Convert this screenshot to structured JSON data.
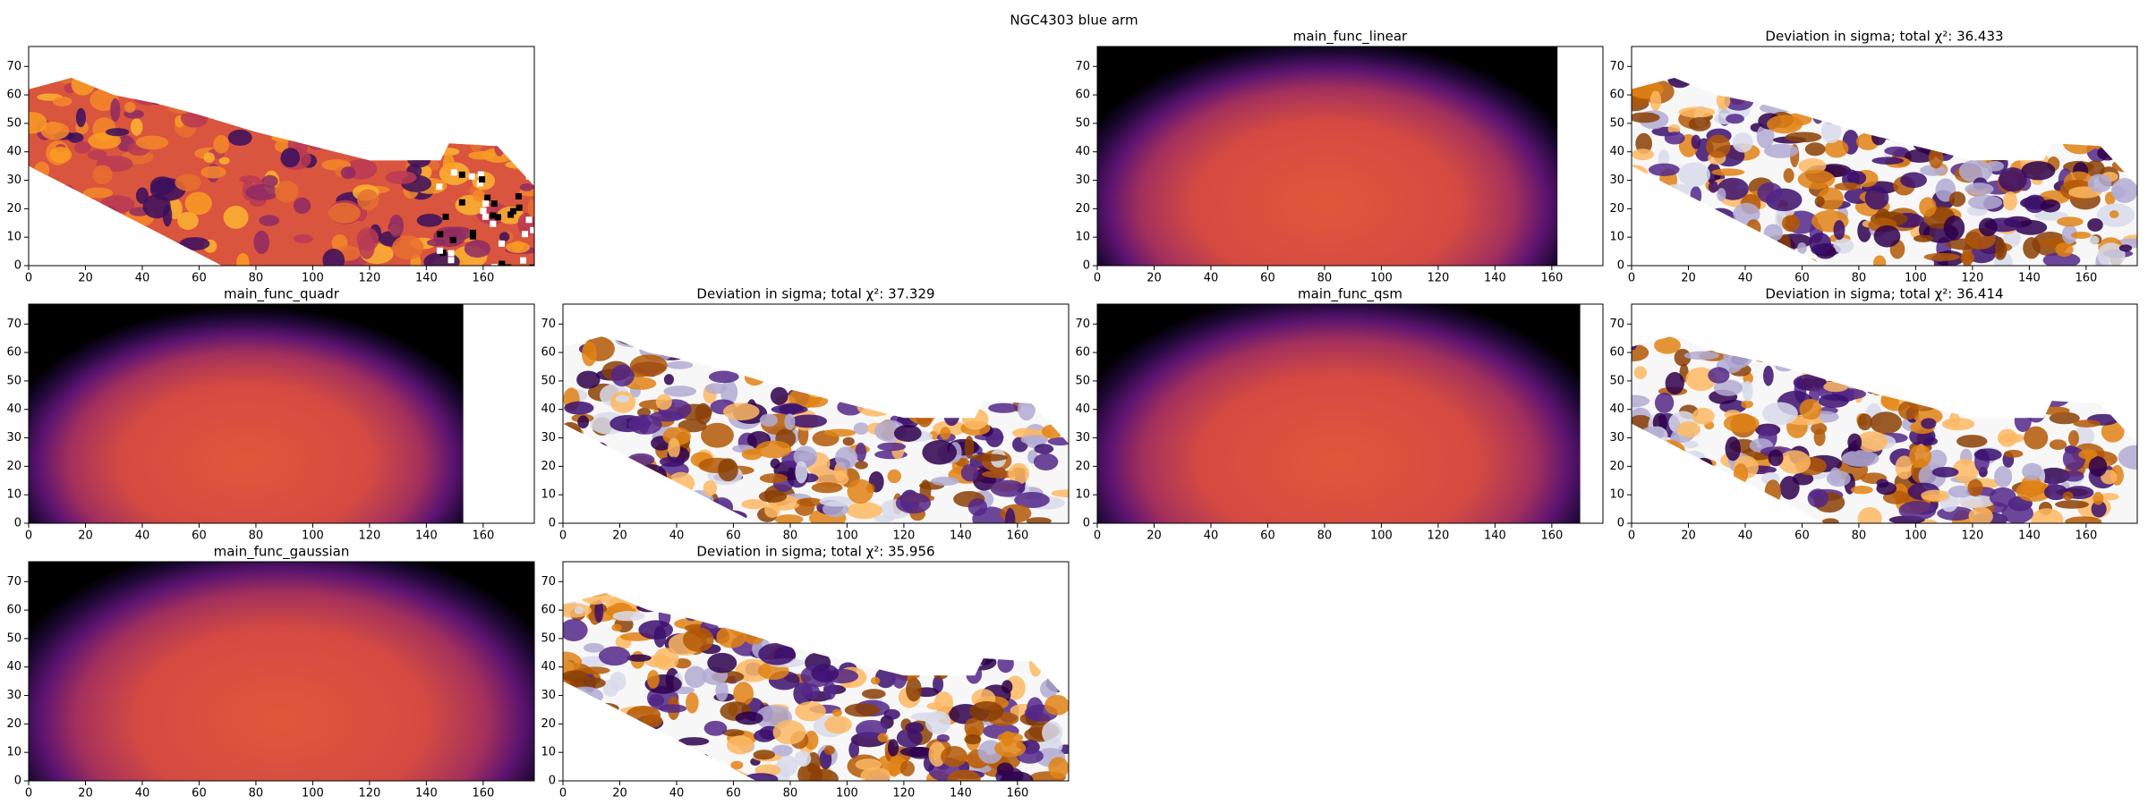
{
  "figure_title": "NGC4303 blue arm",
  "chart_data": [
    {
      "type": "image",
      "colormap": "inferno",
      "xlim": [
        0,
        178
      ],
      "ylim": [
        0,
        77
      ],
      "xticks": [
        0,
        20,
        40,
        60,
        80,
        100,
        120,
        140,
        160
      ],
      "yticks": [
        0,
        10,
        20,
        30,
        40,
        50,
        60,
        70
      ]
    },
    {
      "type": "image",
      "colormap": "inferno",
      "title": "main_func_linear",
      "image_xlim": [
        0,
        162
      ],
      "xlim": [
        0,
        178
      ],
      "ylim": [
        0,
        77
      ],
      "xticks": [
        0,
        20,
        40,
        60,
        80,
        100,
        120,
        140,
        160
      ],
      "yticks": [
        0,
        10,
        20,
        30,
        40,
        50,
        60,
        70
      ]
    },
    {
      "type": "image",
      "colormap": "PuOr",
      "title": "Deviation in sigma; total χ²: 36.433",
      "xlim": [
        0,
        178
      ],
      "ylim": [
        0,
        77
      ],
      "xticks": [
        0,
        20,
        40,
        60,
        80,
        100,
        120,
        140,
        160
      ],
      "yticks": [
        0,
        10,
        20,
        30,
        40,
        50,
        60,
        70
      ]
    },
    {
      "type": "image",
      "colormap": "inferno",
      "title": "main_func_quadr",
      "image_xlim": [
        0,
        153
      ],
      "xlim": [
        0,
        178
      ],
      "ylim": [
        0,
        77
      ],
      "xticks": [
        0,
        20,
        40,
        60,
        80,
        100,
        120,
        140,
        160
      ],
      "yticks": [
        0,
        10,
        20,
        30,
        40,
        50,
        60,
        70
      ]
    },
    {
      "type": "image",
      "colormap": "PuOr",
      "title": "Deviation in sigma; total χ²: 37.329",
      "xlim": [
        0,
        178
      ],
      "ylim": [
        0,
        77
      ],
      "xticks": [
        0,
        20,
        40,
        60,
        80,
        100,
        120,
        140,
        160
      ],
      "yticks": [
        0,
        10,
        20,
        30,
        40,
        50,
        60,
        70
      ]
    },
    {
      "type": "image",
      "colormap": "inferno",
      "title": "main_func_qsm",
      "image_xlim": [
        0,
        170
      ],
      "xlim": [
        0,
        178
      ],
      "ylim": [
        0,
        77
      ],
      "xticks": [
        0,
        20,
        40,
        60,
        80,
        100,
        120,
        140,
        160
      ],
      "yticks": [
        0,
        10,
        20,
        30,
        40,
        50,
        60,
        70
      ]
    },
    {
      "type": "image",
      "colormap": "PuOr",
      "title": "Deviation in sigma; total χ²: 36.414",
      "xlim": [
        0,
        178
      ],
      "ylim": [
        0,
        77
      ],
      "xticks": [
        0,
        20,
        40,
        60,
        80,
        100,
        120,
        140,
        160
      ],
      "yticks": [
        0,
        10,
        20,
        30,
        40,
        50,
        60,
        70
      ]
    },
    {
      "type": "image",
      "colormap": "inferno",
      "title": "main_func_gaussian",
      "image_xlim": [
        0,
        178
      ],
      "xlim": [
        0,
        178
      ],
      "ylim": [
        0,
        77
      ],
      "xticks": [
        0,
        20,
        40,
        60,
        80,
        100,
        120,
        140,
        160
      ],
      "yticks": [
        0,
        10,
        20,
        30,
        40,
        50,
        60,
        70
      ]
    },
    {
      "type": "image",
      "colormap": "PuOr",
      "title": "Deviation in sigma; total χ²: 35.956",
      "xlim": [
        0,
        178
      ],
      "ylim": [
        0,
        77
      ],
      "xticks": [
        0,
        20,
        40,
        60,
        80,
        100,
        120,
        140,
        160
      ],
      "yticks": [
        0,
        10,
        20,
        30,
        40,
        50,
        60,
        70
      ]
    }
  ]
}
